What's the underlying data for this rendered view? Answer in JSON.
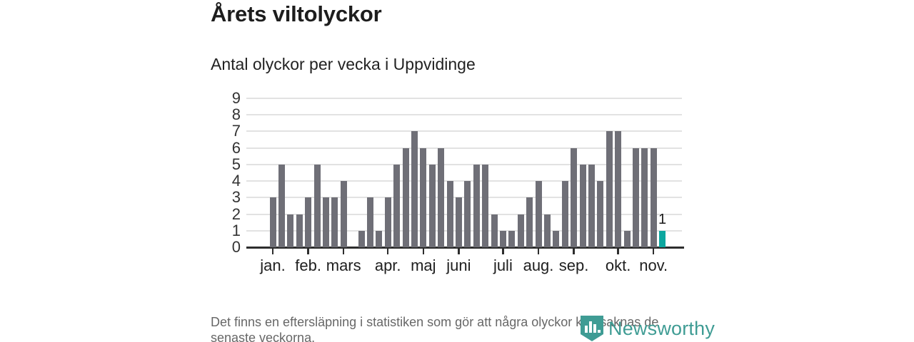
{
  "header": {
    "title": "Årets viltolyckor",
    "subtitle": "Antal olyckor per vecka i Uppvidinge"
  },
  "chart_data": {
    "type": "bar",
    "title": "Årets viltolyckor",
    "subtitle": "Antal olyckor per vecka i Uppvidinge",
    "ylabel": "",
    "xlabel": "",
    "ylim": [
      0,
      9
    ],
    "yticks": [
      0,
      1,
      2,
      3,
      4,
      5,
      6,
      7,
      8,
      9
    ],
    "grid": true,
    "values": [
      3,
      5,
      2,
      2,
      3,
      5,
      3,
      3,
      4,
      0,
      1,
      3,
      1,
      3,
      5,
      6,
      7,
      6,
      5,
      6,
      4,
      3,
      4,
      5,
      5,
      2,
      1,
      1,
      2,
      3,
      4,
      2,
      1,
      4,
      6,
      5,
      5,
      4,
      7,
      7,
      1,
      6,
      6,
      6,
      1
    ],
    "month_ticks": [
      {
        "label": "jan.",
        "week_index": 0
      },
      {
        "label": "feb.",
        "week_index": 4
      },
      {
        "label": "mars",
        "week_index": 8
      },
      {
        "label": "apr.",
        "week_index": 13
      },
      {
        "label": "maj",
        "week_index": 17
      },
      {
        "label": "juni",
        "week_index": 21
      },
      {
        "label": "juli",
        "week_index": 26
      },
      {
        "label": "aug.",
        "week_index": 30
      },
      {
        "label": "sep.",
        "week_index": 34
      },
      {
        "label": "okt.",
        "week_index": 39
      },
      {
        "label": "nov.",
        "week_index": 43
      }
    ],
    "bar_color": "#6F6F77",
    "highlight_color": "#0CA79F",
    "highlight_index": 44,
    "highlight_label": "1",
    "legend_position": "none"
  },
  "footnote": {
    "text": "Det finns en eftersläpning i statistiken som gör att några olyckor kan saknas de senaste veckorna."
  },
  "logo": {
    "text": "Newsworthy",
    "color": "#3F9C94",
    "icon": "newsworthy-pin-barchart-icon"
  }
}
